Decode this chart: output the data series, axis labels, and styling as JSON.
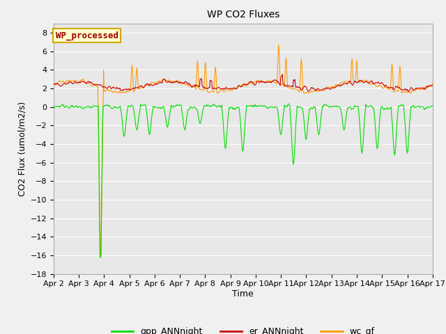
{
  "title": "WP CO2 Fluxes",
  "xlabel": "Time",
  "ylabel": "CO2 Flux (umol/m2/s)",
  "ylim": [
    -18,
    9
  ],
  "yticks": [
    -18,
    -16,
    -14,
    -12,
    -10,
    -8,
    -6,
    -4,
    -2,
    0,
    2,
    4,
    6,
    8
  ],
  "x_start_day": 2,
  "x_end_day": 17,
  "x_tick_days": [
    2,
    3,
    4,
    5,
    6,
    7,
    8,
    9,
    10,
    11,
    12,
    13,
    14,
    15,
    16,
    17
  ],
  "x_tick_labels": [
    "Apr 2",
    "Apr 3",
    "Apr 4",
    "Apr 5",
    "Apr 6",
    "Apr 7",
    "Apr 8",
    "Apr 9",
    "Apr 10",
    "Apr 11",
    "Apr 12",
    "Apr 13",
    "Apr 14",
    "Apr 15",
    "Apr 16",
    "Apr 17"
  ],
  "colors": {
    "gpp": "#00dd00",
    "er": "#cc0000",
    "wc": "#ff9900"
  },
  "legend_label": "WP_processed",
  "legend_box_facecolor": "#ffffcc",
  "legend_box_edgecolor": "#ccaa00",
  "legend_text_color": "#990000",
  "plot_bg_color": "#e8e8e8",
  "fig_bg_color": "#f0f0f0",
  "grid_color": "#ffffff",
  "n_points": 720,
  "title_fontsize": 10,
  "axis_label_fontsize": 9,
  "tick_fontsize": 8,
  "legend_fontsize": 9
}
